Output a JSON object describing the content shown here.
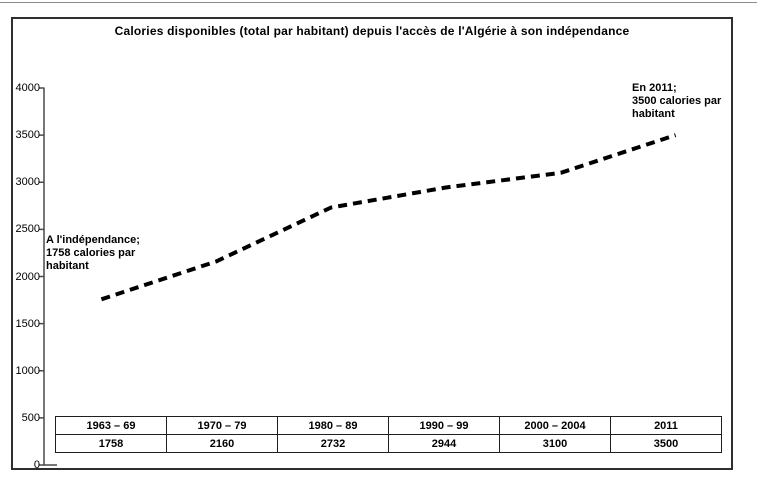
{
  "chart_data": {
    "type": "line",
    "title": "Calories disponibles (total par habitant) depuis l'accès de l'Algérie à son indépendance",
    "categories": [
      "1963 – 69",
      "1970 – 79",
      "1980 – 89",
      "1990 – 99",
      "2000 – 2004",
      "2011"
    ],
    "values": [
      1758,
      2160,
      2732,
      2944,
      3100,
      3500
    ],
    "xlabel": "",
    "ylabel": "",
    "ylim": [
      0,
      4000
    ],
    "yticks": [
      0,
      500,
      1000,
      1500,
      2000,
      2500,
      3000,
      3500,
      4000
    ],
    "grid": false,
    "legend": "none",
    "line": {
      "style": "dashed",
      "color": "#000000",
      "width": 4
    },
    "colors": {
      "axis": "#4a4a4a",
      "frame_border": "#2e2e2e",
      "text": "#000000",
      "background": "#ffffff"
    },
    "annotations": [
      {
        "id": "independence",
        "lines": [
          "A l'indépendance;",
          "1758 calories par",
          "habitant"
        ]
      },
      {
        "id": "year-2011",
        "lines": [
          "En 2011;",
          "3500 calories par",
          "habitant"
        ]
      }
    ],
    "data_table": {
      "period_row": [
        "1963 – 69",
        "1970 – 79",
        "1980 – 89",
        "1990 – 99",
        "2000 – 2004",
        "2011"
      ],
      "calories_row": [
        "1758",
        "2160",
        "2732",
        "2944",
        "3100",
        "3500"
      ]
    }
  }
}
